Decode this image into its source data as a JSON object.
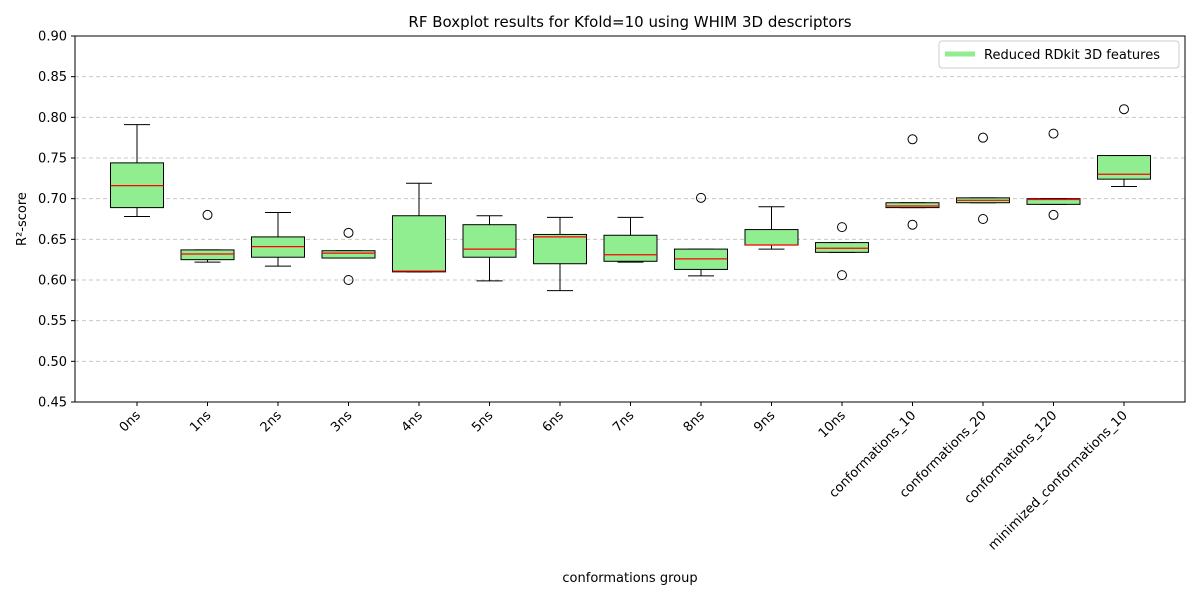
{
  "chart_data": {
    "type": "boxplot",
    "title": "RF Boxplot results for Kfold=10 using WHIM 3D descriptors",
    "xlabel": "conformations group",
    "ylabel": "R²-score",
    "ylim": [
      0.45,
      0.9
    ],
    "yticks": [
      "0.45",
      "0.50",
      "0.55",
      "0.60",
      "0.65",
      "0.70",
      "0.75",
      "0.80",
      "0.85",
      "0.90"
    ],
    "grid": "y-dashed",
    "legend": {
      "position": "top-right",
      "label": "Reduced RDkit 3D features",
      "color": "#90ee90"
    },
    "colors": {
      "box_fill": "#90ee90",
      "median": "#ff0000",
      "outline": "#000000",
      "grid": "#c8c8c8"
    },
    "categories": [
      "0ns",
      "1ns",
      "2ns",
      "3ns",
      "4ns",
      "5ns",
      "6ns",
      "7ns",
      "8ns",
      "9ns",
      "10ns",
      "conformations_10",
      "conformations_20",
      "conformations_120",
      "minimized_conformations_10"
    ],
    "boxes": [
      {
        "whislo": 0.678,
        "q1": 0.689,
        "med": 0.716,
        "q3": 0.744,
        "whishi": 0.791,
        "fliers": []
      },
      {
        "whislo": 0.622,
        "q1": 0.625,
        "med": 0.632,
        "q3": 0.637,
        "whishi": 0.637,
        "fliers": [
          0.68
        ]
      },
      {
        "whislo": 0.617,
        "q1": 0.628,
        "med": 0.641,
        "q3": 0.653,
        "whishi": 0.683,
        "fliers": []
      },
      {
        "whislo": 0.627,
        "q1": 0.627,
        "med": 0.633,
        "q3": 0.636,
        "whishi": 0.636,
        "fliers": [
          0.658,
          0.6
        ]
      },
      {
        "whislo": 0.61,
        "q1": 0.61,
        "med": 0.611,
        "q3": 0.679,
        "whishi": 0.719,
        "fliers": []
      },
      {
        "whislo": 0.599,
        "q1": 0.628,
        "med": 0.638,
        "q3": 0.668,
        "whishi": 0.679,
        "fliers": []
      },
      {
        "whislo": 0.587,
        "q1": 0.62,
        "med": 0.653,
        "q3": 0.656,
        "whishi": 0.677,
        "fliers": []
      },
      {
        "whislo": 0.622,
        "q1": 0.623,
        "med": 0.631,
        "q3": 0.655,
        "whishi": 0.677,
        "fliers": []
      },
      {
        "whislo": 0.605,
        "q1": 0.613,
        "med": 0.626,
        "q3": 0.638,
        "whishi": 0.638,
        "fliers": [
          0.701
        ]
      },
      {
        "whislo": 0.638,
        "q1": 0.643,
        "med": 0.643,
        "q3": 0.662,
        "whishi": 0.69,
        "fliers": []
      },
      {
        "whislo": 0.634,
        "q1": 0.634,
        "med": 0.639,
        "q3": 0.646,
        "whishi": 0.646,
        "fliers": [
          0.665,
          0.606
        ]
      },
      {
        "whislo": 0.689,
        "q1": 0.689,
        "med": 0.691,
        "q3": 0.695,
        "whishi": 0.695,
        "fliers": [
          0.773,
          0.668
        ]
      },
      {
        "whislo": 0.695,
        "q1": 0.695,
        "med": 0.698,
        "q3": 0.701,
        "whishi": 0.701,
        "fliers": [
          0.775,
          0.675
        ]
      },
      {
        "whislo": 0.693,
        "q1": 0.693,
        "med": 0.699,
        "q3": 0.7,
        "whishi": 0.7,
        "fliers": [
          0.78,
          0.68
        ]
      },
      {
        "whislo": 0.715,
        "q1": 0.724,
        "med": 0.73,
        "q3": 0.753,
        "whishi": 0.753,
        "fliers": [
          0.81
        ]
      }
    ]
  }
}
